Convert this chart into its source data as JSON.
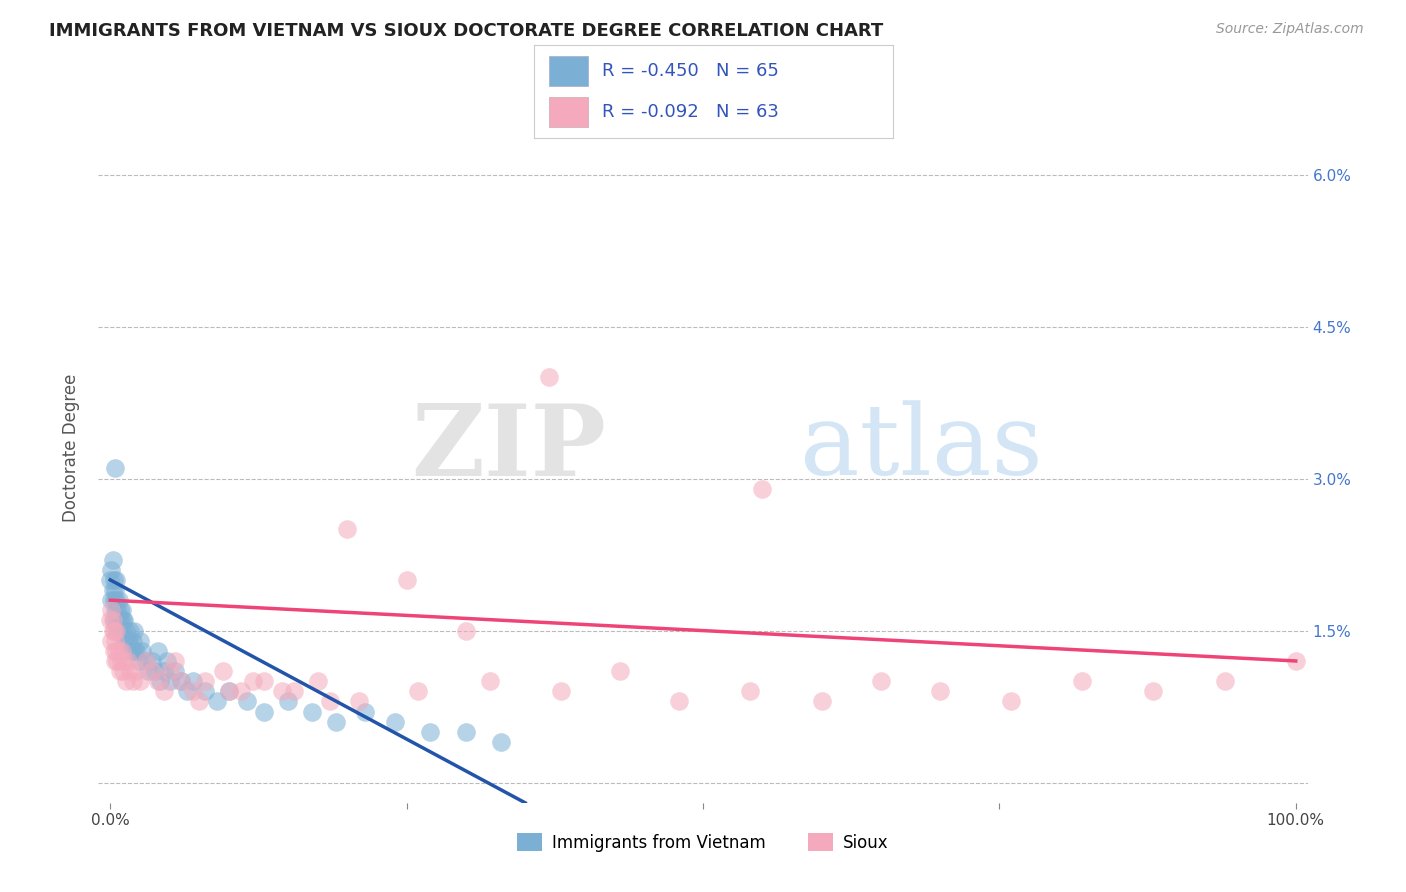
{
  "title": "IMMIGRANTS FROM VIETNAM VS SIOUX DOCTORATE DEGREE CORRELATION CHART",
  "source_text": "Source: ZipAtlas.com",
  "ylabel": "Doctorate Degree",
  "legend_label_1": "Immigrants from Vietnam",
  "legend_label_2": "Sioux",
  "R1": -0.45,
  "N1": 65,
  "R2": -0.092,
  "N2": 63,
  "xlim": [
    -0.01,
    1.01
  ],
  "ylim": [
    -0.002,
    0.068
  ],
  "xtick_positions": [
    0.0,
    0.25,
    0.5,
    0.75,
    1.0
  ],
  "xticklabels": [
    "0.0%",
    "",
    "",
    "",
    "100.0%"
  ],
  "ytick_positions": [
    0.0,
    0.015,
    0.03,
    0.045,
    0.06
  ],
  "yticklabels_right": [
    "",
    "1.5%",
    "3.0%",
    "4.5%",
    "6.0%"
  ],
  "color_blue": "#7BAFD4",
  "color_pink": "#F4AABC",
  "color_blue_line": "#2255AA",
  "color_pink_line": "#EE4477",
  "watermark_zip": "ZIP",
  "watermark_atlas": "atlas",
  "background_color": "#FFFFFF",
  "grid_color": "#BBBBBB",
  "blue_x": [
    0.0,
    0.001,
    0.001,
    0.002,
    0.002,
    0.003,
    0.003,
    0.003,
    0.004,
    0.004,
    0.005,
    0.005,
    0.005,
    0.006,
    0.006,
    0.007,
    0.007,
    0.008,
    0.008,
    0.009,
    0.01,
    0.01,
    0.011,
    0.012,
    0.012,
    0.013,
    0.014,
    0.015,
    0.016,
    0.017,
    0.018,
    0.019,
    0.02,
    0.02,
    0.022,
    0.024,
    0.025,
    0.027,
    0.03,
    0.032,
    0.035,
    0.038,
    0.04,
    0.042,
    0.045,
    0.048,
    0.05,
    0.055,
    0.06,
    0.065,
    0.07,
    0.08,
    0.09,
    0.1,
    0.115,
    0.13,
    0.15,
    0.17,
    0.19,
    0.215,
    0.24,
    0.27,
    0.3,
    0.33,
    0.004
  ],
  "blue_y": [
    0.02,
    0.018,
    0.021,
    0.019,
    0.022,
    0.016,
    0.018,
    0.02,
    0.017,
    0.019,
    0.016,
    0.018,
    0.02,
    0.015,
    0.017,
    0.016,
    0.018,
    0.015,
    0.017,
    0.016,
    0.015,
    0.017,
    0.016,
    0.014,
    0.016,
    0.015,
    0.014,
    0.013,
    0.014,
    0.015,
    0.013,
    0.014,
    0.013,
    0.015,
    0.013,
    0.012,
    0.014,
    0.013,
    0.012,
    0.011,
    0.012,
    0.011,
    0.013,
    0.01,
    0.011,
    0.012,
    0.01,
    0.011,
    0.01,
    0.009,
    0.01,
    0.009,
    0.008,
    0.009,
    0.008,
    0.007,
    0.008,
    0.007,
    0.006,
    0.007,
    0.006,
    0.005,
    0.005,
    0.004,
    0.031
  ],
  "pink_x": [
    0.0,
    0.001,
    0.001,
    0.002,
    0.002,
    0.003,
    0.003,
    0.004,
    0.004,
    0.005,
    0.005,
    0.006,
    0.007,
    0.008,
    0.009,
    0.01,
    0.011,
    0.012,
    0.013,
    0.015,
    0.017,
    0.019,
    0.022,
    0.025,
    0.03,
    0.035,
    0.04,
    0.045,
    0.05,
    0.06,
    0.07,
    0.08,
    0.095,
    0.11,
    0.13,
    0.155,
    0.185,
    0.055,
    0.075,
    0.1,
    0.12,
    0.145,
    0.175,
    0.21,
    0.26,
    0.32,
    0.38,
    0.43,
    0.48,
    0.54,
    0.6,
    0.65,
    0.7,
    0.76,
    0.82,
    0.88,
    0.94,
    1.0,
    0.2,
    0.25,
    0.3,
    0.37,
    0.55
  ],
  "pink_y": [
    0.016,
    0.014,
    0.017,
    0.015,
    0.016,
    0.013,
    0.015,
    0.012,
    0.014,
    0.013,
    0.015,
    0.012,
    0.013,
    0.011,
    0.012,
    0.013,
    0.011,
    0.012,
    0.01,
    0.012,
    0.011,
    0.01,
    0.011,
    0.01,
    0.012,
    0.011,
    0.01,
    0.009,
    0.011,
    0.01,
    0.009,
    0.01,
    0.011,
    0.009,
    0.01,
    0.009,
    0.008,
    0.012,
    0.008,
    0.009,
    0.01,
    0.009,
    0.01,
    0.008,
    0.009,
    0.01,
    0.009,
    0.011,
    0.008,
    0.009,
    0.008,
    0.01,
    0.009,
    0.008,
    0.01,
    0.009,
    0.01,
    0.012,
    0.025,
    0.02,
    0.015,
    0.04,
    0.029
  ],
  "blue_line_x": [
    0.0,
    0.35
  ],
  "blue_line_y": [
    0.02,
    -0.002
  ],
  "pink_line_x": [
    0.0,
    1.0
  ],
  "pink_line_y": [
    0.018,
    0.012
  ]
}
